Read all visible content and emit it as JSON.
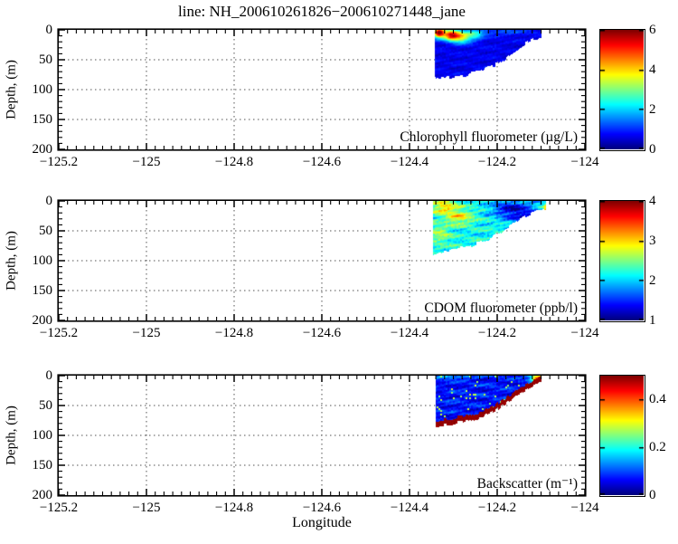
{
  "chart_data": {
    "type": "heatmap",
    "title": "line: NH_200610261826−200610271448_jane",
    "xlabel": "Longitude",
    "ylabel": "Depth, (m)",
    "colormap": "jet",
    "grid": "dotted",
    "x_range": [
      -125.2,
      -124
    ],
    "x_tick_values": [
      -125.2,
      -125,
      -124.8,
      -124.6,
      -124.4,
      -124.2,
      -124
    ],
    "x_tick_labels": [
      "−125.2",
      "−125",
      "−124.8",
      "−124.6",
      "−124.4",
      "−124.2",
      "−124"
    ],
    "x_minor_step": 0.02,
    "y_range": [
      0,
      200
    ],
    "y_tick_values": [
      0,
      50,
      100,
      150,
      200
    ],
    "y_tick_labels": [
      "0",
      "50",
      "100",
      "150",
      "200"
    ],
    "y_minor_step": 10,
    "grid_x_values": [
      -125,
      -124.8,
      -124.6,
      -124.4,
      -124.2
    ],
    "grid_y_values": [
      50,
      100,
      150
    ],
    "panels": [
      {
        "name": "chlorophyll",
        "label": "Chlorophyll fluorometer (µg/L)",
        "vmin": 0,
        "vmax": 6,
        "colorbar_tick_values": [
          0,
          2,
          4,
          6
        ],
        "colorbar_tick_labels": [
          "0",
          "2",
          "4",
          "6"
        ],
        "base_value": 0.65,
        "noise_amplitude": 0.3,
        "bottom_profile": [
          [
            -124.342,
            82
          ],
          [
            -124.31,
            80
          ],
          [
            -124.27,
            75
          ],
          [
            -124.24,
            69
          ],
          [
            -124.215,
            62
          ],
          [
            -124.195,
            55
          ],
          [
            -124.175,
            46
          ],
          [
            -124.15,
            30
          ],
          [
            -124.13,
            20
          ],
          [
            -124.115,
            16
          ],
          [
            -124.1,
            13
          ]
        ],
        "features": [
          {
            "lon": -124.333,
            "depth": 5,
            "rlon": 0.013,
            "rdepth": 8,
            "value": 6.0
          },
          {
            "lon": -124.305,
            "depth": 9,
            "rlon": 0.018,
            "rdepth": 9,
            "value": 5.2
          },
          {
            "lon": -124.28,
            "depth": 12,
            "rlon": 0.02,
            "rdepth": 10,
            "value": 3.4
          },
          {
            "lon": -124.25,
            "depth": 8,
            "rlon": 0.02,
            "rdepth": 9,
            "value": 2.2
          },
          {
            "lon": -124.19,
            "depth": 4,
            "rlon": 0.06,
            "rdepth": 5,
            "value": 1.3
          }
        ]
      },
      {
        "name": "cdom",
        "label": "CDOM fluorometer (ppb/l)",
        "vmin": 1,
        "vmax": 4,
        "colorbar_tick_values": [
          1,
          2,
          3,
          4
        ],
        "colorbar_tick_labels": [
          "1",
          "2",
          "3",
          "4"
        ],
        "base_value": 2.15,
        "noise_amplitude": 0.35,
        "bottom_profile": [
          [
            -124.346,
            88
          ],
          [
            -124.31,
            83
          ],
          [
            -124.27,
            77
          ],
          [
            -124.24,
            70
          ],
          [
            -124.215,
            62
          ],
          [
            -124.195,
            54
          ],
          [
            -124.17,
            42
          ],
          [
            -124.145,
            28
          ],
          [
            -124.12,
            19
          ],
          [
            -124.088,
            14
          ]
        ],
        "features": [
          {
            "lon": -124.32,
            "depth": 10,
            "rlon": 0.03,
            "rdepth": 12,
            "value": 3.0
          },
          {
            "lon": -124.285,
            "depth": 28,
            "rlon": 0.03,
            "rdepth": 12,
            "value": 2.85
          },
          {
            "lon": -124.33,
            "depth": 55,
            "rlon": 0.025,
            "rdepth": 16,
            "value": 2.6
          },
          {
            "lon": -124.165,
            "depth": 14,
            "rlon": 0.045,
            "rdepth": 16,
            "value": 1.25
          },
          {
            "lon": -124.125,
            "depth": 32,
            "rlon": 0.035,
            "rdepth": 14,
            "value": 1.5
          },
          {
            "lon": -124.09,
            "depth": 22,
            "rlon": 0.005,
            "rdepth": 12,
            "value": 4.0
          }
        ]
      },
      {
        "name": "backscatter",
        "label": "Backscatter (m⁻¹)",
        "vmin": 0,
        "vmax": 0.5,
        "colorbar_tick_values": [
          0,
          0.2,
          0.4
        ],
        "colorbar_tick_labels": [
          "0",
          "0.2",
          "0.4"
        ],
        "base_value": 0.07,
        "noise_amplitude": 0.05,
        "speckle": {
          "density": 0.035,
          "value": 0.27
        },
        "bottom_band": {
          "thickness_m": 9,
          "value": 0.5
        },
        "bottom_profile": [
          [
            -124.34,
            86
          ],
          [
            -124.305,
            81
          ],
          [
            -124.265,
            75
          ],
          [
            -124.235,
            69
          ],
          [
            -124.21,
            61
          ],
          [
            -124.19,
            51
          ],
          [
            -124.165,
            39
          ],
          [
            -124.14,
            26
          ],
          [
            -124.115,
            15
          ],
          [
            -124.098,
            10
          ]
        ],
        "features": [
          {
            "lon": -124.105,
            "depth": 4,
            "rlon": 0.018,
            "rdepth": 7,
            "value": 0.45
          },
          {
            "lon": -124.3,
            "depth": 2,
            "rlon": 0.05,
            "rdepth": 3,
            "value": 0.16
          }
        ]
      }
    ]
  }
}
